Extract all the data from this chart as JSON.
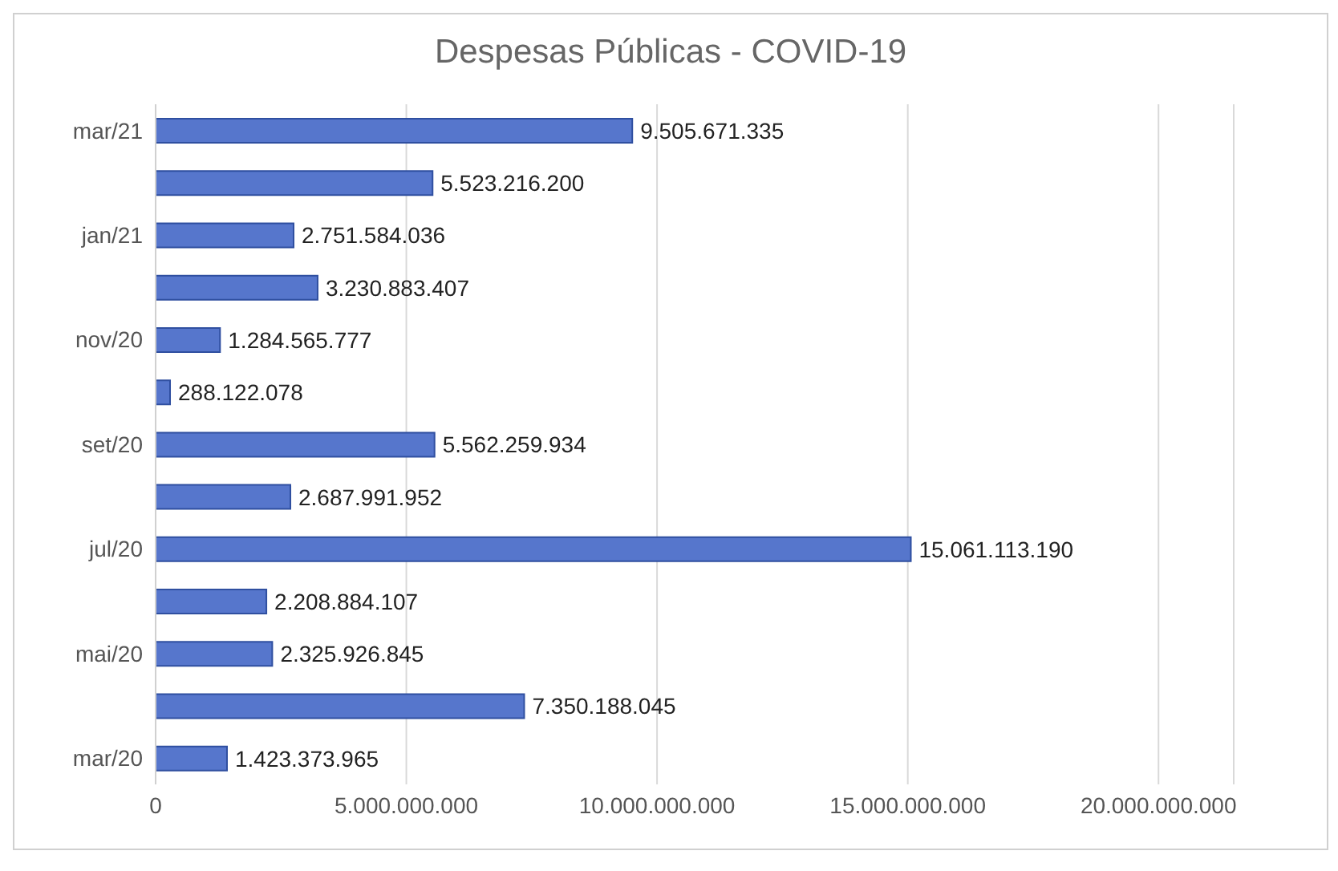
{
  "chart_data": {
    "type": "bar",
    "orientation": "horizontal",
    "title": "Despesas Públicas - COVID-19",
    "categories": [
      "mar/21",
      null,
      "jan/21",
      null,
      "nov/20",
      null,
      "set/20",
      null,
      "jul/20",
      null,
      "mai/20",
      null,
      "mar/20"
    ],
    "values": [
      9505671335,
      5523216200,
      2751584036,
      3230883407,
      1284565777,
      288122078,
      5562259934,
      2687991952,
      15061113190,
      2208884107,
      2325926845,
      7350188045,
      1423373965
    ],
    "value_labels": [
      "9.505.671.335",
      "5.523.216.200",
      "2.751.584.036",
      "3.230.883.407",
      "1.284.565.777",
      "288.122.078",
      "5.562.259.934",
      "2.687.991.952",
      "15.061.113.190",
      "2.208.884.107",
      "2.325.926.845",
      "7.350.188.045",
      "1.423.373.965"
    ],
    "color": "#5676cc",
    "xlim": [
      0,
      21500000000
    ],
    "xticks": [
      0,
      {
        "value": 5000000000,
        "label": "5.000.000.000"
      },
      {
        "value": 10000000000,
        "label": "10.000.000.000"
      },
      {
        "value": 15000000000,
        "label": "15.000.000.000"
      },
      {
        "value": 20000000000,
        "label": "20.000.000.000"
      }
    ],
    "grid": "x"
  }
}
